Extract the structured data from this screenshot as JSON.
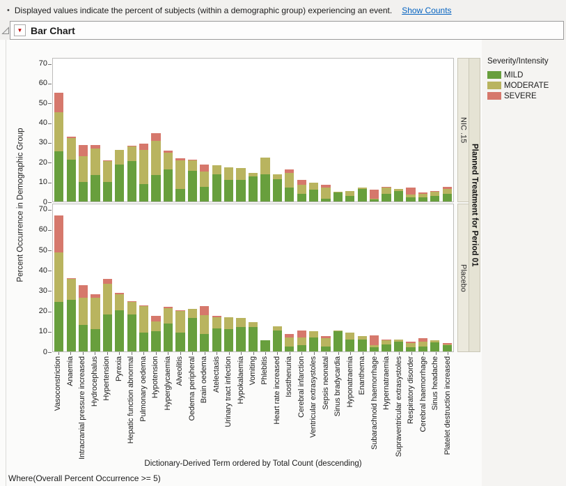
{
  "info": {
    "bullet": "•",
    "text": "Displayed values indicate the percent of subjects (within a demographic group) experiencing an event.",
    "link_label": "Show Counts"
  },
  "report": {
    "title": "Bar Chart"
  },
  "footer": {
    "where_clause": "Where(Overall Percent Occurrence >= 5)"
  },
  "icons": {
    "disclosure": "disclosure-triangle",
    "red_menu": "▼"
  },
  "colors": {
    "mild": "#689f3d",
    "moderate": "#b9b45f",
    "severe": "#d6786c",
    "link": "#0563c1",
    "strip_bg": "#ebe9dd",
    "panel_border": "#bdbcba"
  },
  "chart_data": {
    "type": "bar",
    "stacked": true,
    "title": "Bar Chart",
    "xlabel": "Dictionary-Derived Term ordered by Total Count (descending)",
    "ylabel": "Percent Occurrence in Demographic Group",
    "ylim": [
      0,
      73
    ],
    "yticks": [
      0,
      10,
      20,
      30,
      40,
      50,
      60,
      70
    ],
    "grid": false,
    "panel_group_label": "Planned Treatment for Period 01",
    "legend": {
      "title": "Severity/Intensity",
      "position": "right",
      "entries": [
        {
          "label": "MILD",
          "color": "#689f3d"
        },
        {
          "label": "MODERATE",
          "color": "#b9b45f"
        },
        {
          "label": "SEVERE",
          "color": "#d6786c"
        }
      ]
    },
    "categories": [
      "Vasoconstriction",
      "Anaemia",
      "Intracranial pressure increased",
      "Hydrocephalus",
      "Hypertension",
      "Pyrexia",
      "Hepatic function abnormal",
      "Pulmonary oedema",
      "Hypotension",
      "Hyperglycaemia",
      "Alveolitis",
      "Oedema peripheral",
      "Brain oedema",
      "Atelectasis",
      "Urinary tract infection",
      "Hypokalaemia",
      "Vomiting",
      "Phlebitis",
      "Heart rate increased",
      "Isosthenuria",
      "Cerebral infarction",
      "Ventricular extrasystoles",
      "Sepsis neonatal",
      "Sinus bradycardia",
      "Hyponatraemia",
      "Enanthema",
      "Subarachnoid haemorrhage",
      "Hypernatraemia",
      "Supraventricular extrasystoles",
      "Respiratory disorder",
      "Cerebral haemorrhage",
      "Sinus headache",
      "Platelet destruction increased"
    ],
    "panels": [
      {
        "label": "NIC .15",
        "series": [
          {
            "name": "MILD",
            "values": [
              25.5,
              21.5,
              10,
              13.5,
              10,
              19,
              20.5,
              9,
              13.5,
              16.5,
              6.5,
              15.5,
              7.5,
              14,
              11,
              11,
              13,
              14,
              11.5,
              7,
              4,
              6,
              1.5,
              4.5,
              3,
              6.5,
              1,
              4,
              5.5,
              2,
              2,
              3,
              4
            ]
          },
          {
            "name": "MODERATE",
            "values": [
              20,
              11,
              13,
              13.5,
              10.5,
              7.5,
              7.5,
              17.5,
              17.5,
              8.5,
              14.5,
              5.5,
              8,
              4.5,
              6.5,
              6,
              1.5,
              8.5,
              2.5,
              7.5,
              4.5,
              3.5,
              5.5,
              0.5,
              2.5,
              0.5,
              0.5,
              3,
              1,
              1.5,
              2,
              2,
              2.5
            ]
          },
          {
            "name": "SEVERE",
            "values": [
              10,
              0.5,
              6,
              2,
              0.5,
              0,
              0.5,
              3,
              4,
              1,
              1,
              0.5,
              3.5,
              0,
              0,
              0,
              0,
              0,
              0,
              2,
              2.5,
              0,
              1.5,
              0,
              0,
              0,
              4.5,
              0.5,
              0,
              3.5,
              0.5,
              0.5,
              1
            ]
          }
        ]
      },
      {
        "label": "Placebo",
        "series": [
          {
            "name": "MILD",
            "values": [
              24.5,
              25.5,
              13,
              11,
              18.5,
              20.5,
              18.5,
              9.5,
              10,
              14,
              9.5,
              16.5,
              8.5,
              11.5,
              11,
              12,
              12,
              5.5,
              10.5,
              2.5,
              3,
              7,
              2.5,
              10,
              6,
              6,
              2,
              3.5,
              5,
              2,
              2.5,
              4.5,
              3
            ]
          },
          {
            "name": "MODERATE",
            "values": [
              24.5,
              10.5,
              13.5,
              15.5,
              15,
              8,
              6,
              13,
              5,
              7.5,
              10.5,
              4.5,
              9.5,
              5.5,
              6,
              4.5,
              2.5,
              0,
              2,
              4.5,
              4,
              3,
              4,
              0.5,
              3.5,
              1.5,
              1,
              2,
              1,
              2,
              2.5,
              1,
              0.5
            ]
          },
          {
            "name": "SEVERE",
            "values": [
              18.5,
              0.5,
              6.5,
              2,
              2.5,
              0.5,
              0.5,
              0.5,
              2.5,
              0.5,
              0.5,
              0,
              4.5,
              0.5,
              0,
              0,
              0,
              0,
              0,
              1.5,
              3.5,
              0,
              1,
              0,
              0,
              0,
              5,
              0.5,
              0,
              1,
              1.5,
              0,
              0.5
            ]
          }
        ]
      }
    ]
  }
}
